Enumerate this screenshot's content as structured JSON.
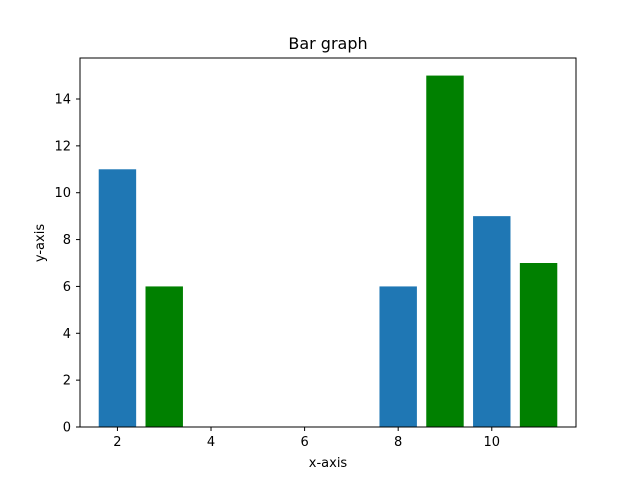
{
  "chart_data": {
    "type": "bar",
    "title": "Bar graph",
    "xlabel": "x-axis",
    "ylabel": "y-axis",
    "xlim": [
      1.2,
      11.8
    ],
    "ylim": [
      0,
      15.75
    ],
    "xticks": [
      2,
      4,
      6,
      8,
      10
    ],
    "yticks": [
      0,
      2,
      4,
      6,
      8,
      10,
      12,
      14
    ],
    "bar_width": 0.8,
    "grid": false,
    "series": [
      {
        "color": "#1f77b4",
        "x": [
          2,
          8,
          10
        ],
        "values": [
          11,
          6,
          9
        ]
      },
      {
        "color": "#008000",
        "x": [
          3,
          9,
          11
        ],
        "values": [
          6,
          15,
          7
        ]
      }
    ]
  }
}
